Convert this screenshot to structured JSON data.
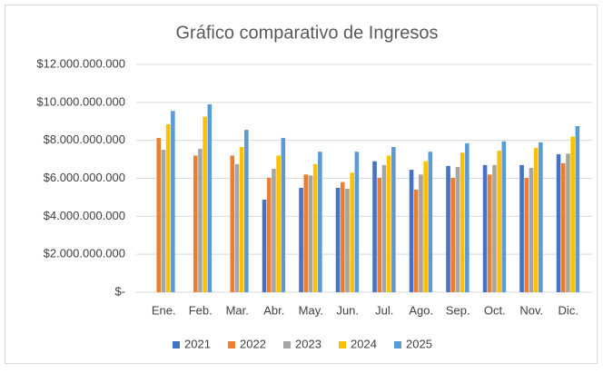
{
  "chart_data": {
    "type": "bar",
    "title": "Gráfico comparativo de Ingresos",
    "categories": [
      "Ene.",
      "Feb.",
      "Mar.",
      "Abr.",
      "May.",
      "Jun.",
      "Jul.",
      "Ago.",
      "Sep.",
      "Oct.",
      "Nov.",
      "Dic."
    ],
    "series": [
      {
        "name": "2021",
        "color": "#4472c4",
        "values": [
          null,
          null,
          null,
          4880000000,
          5500000000,
          5500000000,
          6900000000,
          6450000000,
          6650000000,
          6700000000,
          6700000000,
          7270000000
        ]
      },
      {
        "name": "2022",
        "color": "#ed7d31",
        "values": [
          8130000000,
          7200000000,
          7200000000,
          6030000000,
          6200000000,
          5800000000,
          6030000000,
          5400000000,
          6030000000,
          6200000000,
          6030000000,
          6800000000
        ]
      },
      {
        "name": "2023",
        "color": "#a5a5a5",
        "values": [
          7500000000,
          7550000000,
          6750000000,
          6500000000,
          6150000000,
          5450000000,
          6700000000,
          6200000000,
          6600000000,
          6700000000,
          6550000000,
          7300000000
        ]
      },
      {
        "name": "2024",
        "color": "#ffc000",
        "values": [
          8850000000,
          9250000000,
          7650000000,
          7200000000,
          6750000000,
          6300000000,
          7200000000,
          6900000000,
          7350000000,
          7450000000,
          7600000000,
          8200000000
        ]
      },
      {
        "name": "2025",
        "color": "#5b9bd5",
        "values": [
          9550000000,
          9900000000,
          8550000000,
          8130000000,
          7400000000,
          7400000000,
          7650000000,
          7400000000,
          7850000000,
          7950000000,
          7900000000,
          8750000000
        ]
      }
    ],
    "ylim": [
      0,
      12000000000
    ],
    "yticks": [
      {
        "value": 0,
        "label": "$-"
      },
      {
        "value": 2000000000,
        "label": "$2.000.000.000"
      },
      {
        "value": 4000000000,
        "label": "$4.000.000.000"
      },
      {
        "value": 6000000000,
        "label": "$6.000.000.000"
      },
      {
        "value": 8000000000,
        "label": "$8.000.000.000"
      },
      {
        "value": 10000000000,
        "label": "$10.000.000.000"
      },
      {
        "value": 12000000000,
        "label": "$12.000.000.000"
      }
    ],
    "grid": true,
    "legend": "bottom"
  }
}
